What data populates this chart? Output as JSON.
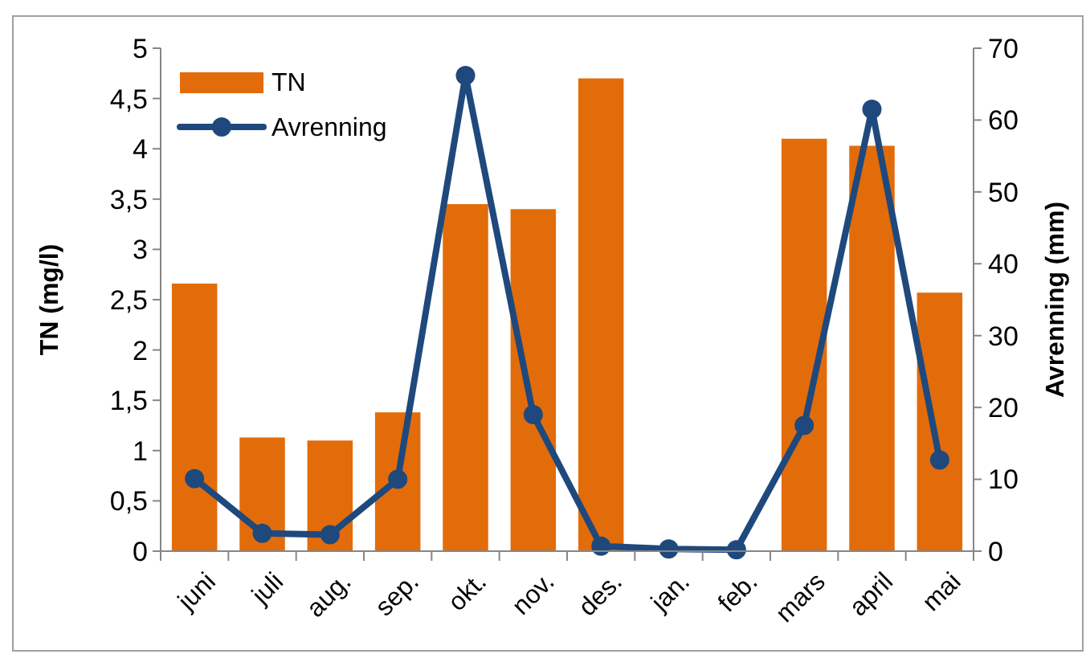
{
  "chart_data": {
    "type": "bar",
    "categories": [
      "juni",
      "juli",
      "aug.",
      "sep.",
      "okt.",
      "nov.",
      "des.",
      "jan.",
      "feb.",
      "mars",
      "april",
      "mai"
    ],
    "ylabel": "TN (mg/l)",
    "y2label": "Avrenning (mm)",
    "ylim": [
      0,
      5
    ],
    "yticks": [
      0,
      {
        "value": 0.5,
        "label": "0,5"
      },
      1,
      {
        "value": 1.5,
        "label": "1,5"
      },
      2,
      {
        "value": 2.5,
        "label": "2,5"
      },
      3,
      {
        "value": 3.5,
        "label": "3,5"
      },
      4,
      {
        "value": 4.5,
        "label": "4,5"
      },
      5
    ],
    "y2lim": [
      0,
      70
    ],
    "y2ticks": [
      0,
      10,
      20,
      30,
      40,
      50,
      60,
      70
    ],
    "legend": "top left",
    "grid": false,
    "series": [
      {
        "name": "TN",
        "color": "#e36c0a",
        "values": [
          2.66,
          1.13,
          1.1,
          1.38,
          3.45,
          3.4,
          4.7,
          null,
          null,
          4.1,
          4.03,
          2.57
        ]
      },
      {
        "name": "Avrenning",
        "type": "line",
        "axis": "y2",
        "color": "#1f497d",
        "marker": "circle",
        "line_style": "solid",
        "values": [
          10.1,
          2.5,
          2.3,
          10,
          66.2,
          19,
          0.7,
          0.3,
          0.2,
          17.5,
          61.5,
          12.7
        ]
      }
    ]
  }
}
